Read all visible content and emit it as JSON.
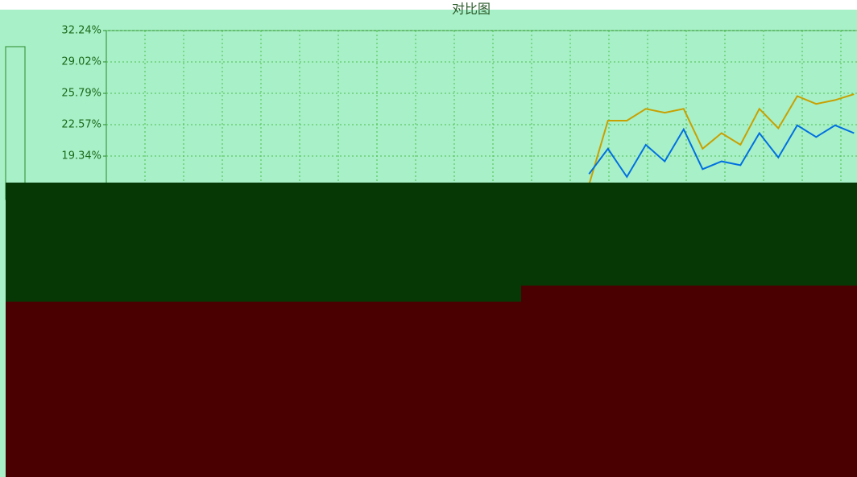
{
  "chart_data": {
    "type": "line",
    "title": "对比图",
    "categories": [
      null,
      null,
      null,
      null,
      null,
      null,
      null,
      null,
      null,
      null,
      null,
      null,
      null,
      null,
      null,
      null,
      null,
      null,
      null,
      null,
      null,
      null,
      null,
      null,
      null,
      null,
      null,
      null,
      null,
      null,
      null,
      null,
      null,
      null,
      null,
      null,
      null,
      null,
      null,
      null
    ],
    "series": [
      {
        "color": "#c8a000",
        "values": [
          null,
          null,
          null,
          null,
          null,
          null,
          null,
          null,
          null,
          null,
          null,
          null,
          null,
          null,
          null,
          null,
          null,
          null,
          null,
          null,
          null,
          null,
          null,
          null,
          null,
          16.4,
          22.98,
          22.98,
          24.2,
          23.8,
          24.2,
          20.1,
          21.7,
          20.5,
          24.2,
          22.2,
          25.5,
          24.7,
          25.1,
          25.7
        ]
      },
      {
        "color": "#0070e0",
        "values": [
          null,
          null,
          null,
          null,
          null,
          null,
          null,
          null,
          null,
          null,
          null,
          null,
          null,
          null,
          null,
          null,
          null,
          null,
          null,
          null,
          null,
          null,
          null,
          null,
          null,
          17.5,
          20.1,
          17.2,
          20.5,
          18.8,
          22.1,
          18.0,
          18.8,
          18.4,
          21.7,
          19.2,
          22.5,
          21.3,
          22.5,
          21.7
        ]
      }
    ],
    "ylim": [
      16.12,
      32.24
    ],
    "yticks": [
      {
        "value": 32.24,
        "label": "32.24%"
      },
      {
        "value": 29.02,
        "label": "29.02%"
      },
      {
        "value": 25.79,
        "label": "25.79%"
      },
      {
        "value": 22.57,
        "label": "22.57%"
      },
      {
        "value": 19.34,
        "label": "19.34%"
      }
    ],
    "grid": true
  }
}
